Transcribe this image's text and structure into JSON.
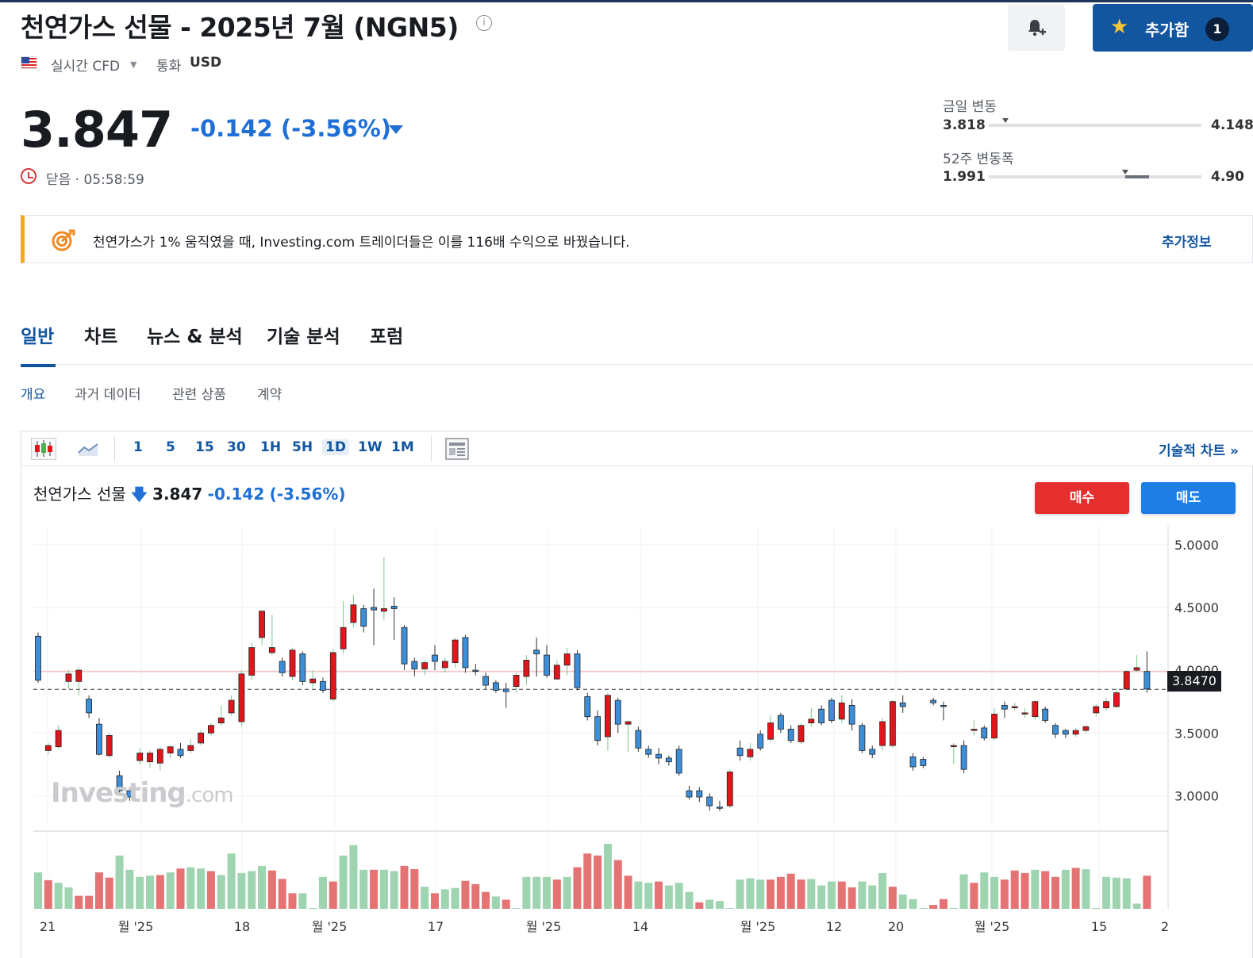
{
  "header": {
    "title": "천연가스 선물 - 2025년 7월 (NGN5)",
    "info_glyph": "i",
    "realtime_label": "실시간 CFD",
    "currency_label": "통화",
    "currency": "USD",
    "alert_icon": "bell-plus-icon",
    "add_button_label": "추가함",
    "add_count": "1"
  },
  "quote": {
    "price": "3.847",
    "change": "-0.142",
    "change_pct": "(-3.56%)",
    "status": "닫음 · 05:58:59"
  },
  "ranges": {
    "day_label": "금일 변동",
    "day_low": "3.818",
    "day_high": "4.148",
    "day_position": 0.08,
    "week52_label": "52주 변동폭",
    "week52_low": "1.991",
    "week52_high": "4.90",
    "week52_position": 0.64
  },
  "banner": {
    "text": "천연가스가 1% 움직였을 때, Investing.com 트레이더들은 이를 116배 수익으로 바꿨습니다.",
    "link": "추가정보",
    "accent": "#f5a623"
  },
  "tabs": [
    "일반",
    "차트",
    "뉴스 & 분석",
    "기술 분석",
    "포럼"
  ],
  "subtabs": [
    "개요",
    "과거 데이터",
    "관련 상품",
    "계약"
  ],
  "toolbar": {
    "intervals": [
      "1",
      "5",
      "15",
      "30",
      "1H",
      "5H",
      "1D",
      "1W",
      "1M"
    ],
    "active_interval": "1D",
    "technical_link": "기술적 차트 »"
  },
  "legend": {
    "name": "천연가스 선물",
    "arrow": "🡇",
    "price": "3.847",
    "change": "-0.142",
    "change_pct": "(-3.56%)"
  },
  "trade": {
    "buy": "매수",
    "sell": "매도"
  },
  "watermark": {
    "brand": "Investing",
    "suffix": ".com"
  },
  "chart_data": {
    "type": "candlestick",
    "y_ticks": [
      "5.0000",
      "4.5000",
      "4.0000",
      "3.5000",
      "3.0000"
    ],
    "ylim": [
      2.75,
      5.15
    ],
    "last_price_label": "3.8470",
    "last_price": 3.847,
    "reference_line": 3.989,
    "x_ticks": [
      "21",
      "월 '25",
      "18",
      "월 '25",
      "17",
      "월 '25",
      "14",
      "월 '25",
      "12",
      "20",
      "월 '25",
      "15",
      "2"
    ],
    "colors": {
      "up": "#e0161b",
      "down": "#3d8ed8",
      "vol_up": "#e57373",
      "vol_down": "#9fd4b0"
    },
    "candles": [
      [
        4.27,
        3.92,
        4.3,
        3.9
      ],
      [
        3.36,
        3.4,
        3.42,
        3.33
      ],
      [
        3.39,
        3.52,
        3.56,
        3.37
      ],
      [
        3.91,
        3.97,
        4.0,
        3.85
      ],
      [
        3.91,
        4.0,
        4.02,
        3.8
      ],
      [
        3.77,
        3.66,
        3.8,
        3.62
      ],
      [
        3.57,
        3.33,
        3.62,
        3.32
      ],
      [
        3.32,
        3.48,
        3.5,
        3.3
      ],
      [
        3.16,
        3.04,
        3.2,
        3.02
      ],
      [
        3.04,
        2.99,
        3.06,
        2.96
      ],
      [
        3.28,
        3.34,
        3.38,
        3.25
      ],
      [
        3.27,
        3.34,
        3.36,
        3.22
      ],
      [
        3.26,
        3.37,
        3.39,
        3.2
      ],
      [
        3.34,
        3.39,
        3.4,
        3.3
      ],
      [
        3.37,
        3.32,
        3.42,
        3.3
      ],
      [
        3.36,
        3.4,
        3.45,
        3.34
      ],
      [
        3.42,
        3.5,
        3.52,
        3.4
      ],
      [
        3.5,
        3.56,
        3.58,
        3.48
      ],
      [
        3.58,
        3.62,
        3.72,
        3.56
      ],
      [
        3.66,
        3.76,
        3.8,
        3.64
      ],
      [
        3.59,
        3.97,
        4.0,
        3.55
      ],
      [
        3.96,
        4.18,
        4.22,
        3.92
      ],
      [
        4.26,
        4.47,
        4.48,
        4.2
      ],
      [
        4.14,
        4.18,
        4.44,
        4.12
      ],
      [
        4.07,
        3.98,
        4.1,
        3.95
      ],
      [
        3.95,
        4.16,
        4.18,
        3.92
      ],
      [
        4.13,
        3.91,
        4.15,
        3.88
      ],
      [
        3.9,
        3.93,
        4.0,
        3.86
      ],
      [
        3.91,
        3.84,
        3.94,
        3.82
      ],
      [
        3.77,
        4.14,
        4.17,
        3.75
      ],
      [
        4.17,
        4.34,
        4.55,
        4.13
      ],
      [
        4.38,
        4.52,
        4.6,
        4.34
      ],
      [
        4.49,
        4.35,
        4.52,
        4.3
      ],
      [
        4.5,
        4.48,
        4.65,
        4.2
      ],
      [
        4.47,
        4.49,
        4.9,
        4.4
      ],
      [
        4.51,
        4.49,
        4.58,
        4.24
      ],
      [
        4.34,
        4.05,
        4.36,
        4.0
      ],
      [
        4.07,
        4.01,
        4.1,
        3.95
      ],
      [
        4.01,
        4.06,
        4.08,
        3.96
      ],
      [
        4.12,
        4.07,
        4.2,
        4.0
      ],
      [
        4.02,
        4.07,
        4.1,
        3.98
      ],
      [
        4.06,
        4.24,
        4.26,
        4.02
      ],
      [
        4.26,
        4.02,
        4.28,
        3.98
      ],
      [
        4.0,
        3.99,
        4.05,
        3.96
      ],
      [
        3.95,
        3.88,
        3.98,
        3.85
      ],
      [
        3.9,
        3.84,
        3.92,
        3.82
      ],
      [
        3.85,
        3.83,
        3.9,
        3.7
      ],
      [
        3.87,
        3.96,
        3.98,
        3.82
      ],
      [
        3.95,
        4.08,
        4.12,
        3.88
      ],
      [
        4.16,
        4.13,
        4.26,
        3.95
      ],
      [
        4.12,
        3.96,
        4.2,
        3.94
      ],
      [
        3.93,
        4.04,
        4.08,
        3.92
      ],
      [
        4.04,
        4.13,
        4.18,
        3.96
      ],
      [
        4.13,
        3.86,
        4.16,
        3.84
      ],
      [
        3.79,
        3.63,
        3.82,
        3.6
      ],
      [
        3.63,
        3.44,
        3.68,
        3.4
      ],
      [
        3.47,
        3.8,
        3.82,
        3.36
      ],
      [
        3.76,
        3.57,
        3.78,
        3.5
      ],
      [
        3.57,
        3.59,
        3.6,
        3.35
      ],
      [
        3.52,
        3.38,
        3.55,
        3.35
      ],
      [
        3.37,
        3.33,
        3.4,
        3.3
      ],
      [
        3.33,
        3.3,
        3.38,
        3.25
      ],
      [
        3.3,
        3.27,
        3.32,
        3.24
      ],
      [
        3.37,
        3.18,
        3.4,
        3.16
      ],
      [
        3.04,
        2.99,
        3.08,
        2.97
      ],
      [
        3.04,
        2.99,
        3.07,
        2.95
      ],
      [
        2.99,
        2.92,
        3.02,
        2.88
      ],
      [
        2.91,
        2.9,
        2.96,
        2.88
      ],
      [
        2.92,
        3.19,
        3.21,
        2.9
      ],
      [
        3.38,
        3.32,
        3.44,
        3.28
      ],
      [
        3.31,
        3.37,
        3.42,
        3.28
      ],
      [
        3.49,
        3.38,
        3.52,
        3.36
      ],
      [
        3.45,
        3.58,
        3.64,
        3.43
      ],
      [
        3.64,
        3.53,
        3.66,
        3.5
      ],
      [
        3.53,
        3.44,
        3.56,
        3.42
      ],
      [
        3.43,
        3.56,
        3.58,
        3.41
      ],
      [
        3.58,
        3.61,
        3.7,
        3.55
      ],
      [
        3.69,
        3.58,
        3.72,
        3.56
      ],
      [
        3.76,
        3.6,
        3.78,
        3.58
      ],
      [
        3.61,
        3.74,
        3.8,
        3.58
      ],
      [
        3.72,
        3.57,
        3.77,
        3.52
      ],
      [
        3.56,
        3.36,
        3.58,
        3.34
      ],
      [
        3.37,
        3.33,
        3.4,
        3.3
      ],
      [
        3.4,
        3.59,
        3.62,
        3.36
      ],
      [
        3.4,
        3.75,
        3.76,
        3.38
      ],
      [
        3.74,
        3.71,
        3.8,
        3.66
      ],
      [
        3.31,
        3.23,
        3.34,
        3.2
      ],
      [
        3.29,
        3.24,
        3.31,
        3.22
      ],
      [
        3.76,
        3.74,
        3.78,
        3.72
      ],
      [
        3.72,
        3.71,
        3.75,
        3.6
      ],
      [
        3.4,
        3.4,
        3.42,
        3.25
      ],
      [
        3.4,
        3.21,
        3.44,
        3.18
      ],
      [
        3.52,
        3.53,
        3.6,
        3.48
      ],
      [
        3.54,
        3.46,
        3.56,
        3.44
      ],
      [
        3.46,
        3.65,
        3.7,
        3.44
      ],
      [
        3.72,
        3.69,
        3.75,
        3.62
      ],
      [
        3.7,
        3.71,
        3.74,
        3.68
      ],
      [
        3.66,
        3.66,
        3.7,
        3.62
      ],
      [
        3.63,
        3.75,
        3.76,
        3.6
      ],
      [
        3.69,
        3.6,
        3.71,
        3.58
      ],
      [
        3.56,
        3.49,
        3.58,
        3.46
      ],
      [
        3.52,
        3.49,
        3.53,
        3.46
      ],
      [
        3.49,
        3.52,
        3.54,
        3.47
      ],
      [
        3.52,
        3.55,
        3.56,
        3.5
      ],
      [
        3.66,
        3.71,
        3.73,
        3.63
      ],
      [
        3.7,
        3.75,
        3.78,
        3.68
      ],
      [
        3.71,
        3.82,
        3.86,
        3.7
      ],
      [
        3.85,
        3.99,
        4.0,
        3.84
      ],
      [
        4.0,
        4.02,
        4.12,
        3.99
      ],
      [
        3.99,
        3.85,
        4.15,
        3.82
      ]
    ],
    "volume": [
      [
        0.56,
        0
      ],
      [
        0.44,
        1
      ],
      [
        0.4,
        0
      ],
      [
        0.33,
        0
      ],
      [
        0.2,
        1
      ],
      [
        0.2,
        1
      ],
      [
        0.56,
        1
      ],
      [
        0.48,
        1
      ],
      [
        0.82,
        0
      ],
      [
        0.6,
        0
      ],
      [
        0.49,
        0
      ],
      [
        0.51,
        0
      ],
      [
        0.52,
        1
      ],
      [
        0.56,
        0
      ],
      [
        0.62,
        1
      ],
      [
        0.64,
        0
      ],
      [
        0.62,
        0
      ],
      [
        0.58,
        1
      ],
      [
        0.52,
        0
      ],
      [
        0.85,
        0
      ],
      [
        0.55,
        0
      ],
      [
        0.58,
        0
      ],
      [
        0.66,
        0
      ],
      [
        0.59,
        1
      ],
      [
        0.46,
        1
      ],
      [
        0.24,
        1
      ],
      [
        0.24,
        0
      ],
      [
        0.0,
        0
      ],
      [
        0.49,
        0
      ],
      [
        0.42,
        1
      ],
      [
        0.82,
        0
      ],
      [
        0.98,
        0
      ],
      [
        0.6,
        0
      ],
      [
        0.6,
        1
      ],
      [
        0.6,
        0
      ],
      [
        0.58,
        0
      ],
      [
        0.66,
        1
      ],
      [
        0.61,
        1
      ],
      [
        0.34,
        0
      ],
      [
        0.24,
        1
      ],
      [
        0.3,
        0
      ],
      [
        0.32,
        0
      ],
      [
        0.43,
        1
      ],
      [
        0.38,
        1
      ],
      [
        0.26,
        1
      ],
      [
        0.19,
        0
      ],
      [
        0.14,
        1
      ],
      [
        0.01,
        0
      ],
      [
        0.49,
        0
      ],
      [
        0.49,
        0
      ],
      [
        0.49,
        0
      ],
      [
        0.45,
        1
      ],
      [
        0.49,
        0
      ],
      [
        0.64,
        1
      ],
      [
        0.85,
        1
      ],
      [
        0.82,
        1
      ],
      [
        1.0,
        0
      ],
      [
        0.75,
        1
      ],
      [
        0.51,
        1
      ],
      [
        0.42,
        0
      ],
      [
        0.4,
        0
      ],
      [
        0.42,
        1
      ],
      [
        0.36,
        0
      ],
      [
        0.4,
        0
      ],
      [
        0.26,
        0
      ],
      [
        0.1,
        1
      ],
      [
        0.14,
        0
      ],
      [
        0.12,
        0
      ],
      [
        0.01,
        0
      ],
      [
        0.45,
        0
      ],
      [
        0.47,
        0
      ],
      [
        0.45,
        0
      ],
      [
        0.45,
        1
      ],
      [
        0.49,
        1
      ],
      [
        0.54,
        1
      ],
      [
        0.45,
        1
      ],
      [
        0.46,
        0
      ],
      [
        0.36,
        0
      ],
      [
        0.42,
        0
      ],
      [
        0.42,
        1
      ],
      [
        0.33,
        1
      ],
      [
        0.42,
        0
      ],
      [
        0.36,
        0
      ],
      [
        0.55,
        0
      ],
      [
        0.34,
        1
      ],
      [
        0.22,
        0
      ],
      [
        0.15,
        0
      ],
      [
        0.01,
        0
      ],
      [
        0.06,
        1
      ],
      [
        0.15,
        1
      ],
      [
        0.01,
        0
      ],
      [
        0.53,
        0
      ],
      [
        0.4,
        1
      ],
      [
        0.56,
        0
      ],
      [
        0.49,
        0
      ],
      [
        0.45,
        1
      ],
      [
        0.59,
        1
      ],
      [
        0.55,
        1
      ],
      [
        0.6,
        0
      ],
      [
        0.58,
        1
      ],
      [
        0.49,
        1
      ],
      [
        0.6,
        0
      ],
      [
        0.63,
        1
      ],
      [
        0.61,
        0
      ],
      [
        0.01,
        0
      ],
      [
        0.49,
        0
      ],
      [
        0.48,
        0
      ],
      [
        0.47,
        0
      ],
      [
        0.08,
        0
      ],
      [
        0.51,
        1
      ]
    ]
  }
}
